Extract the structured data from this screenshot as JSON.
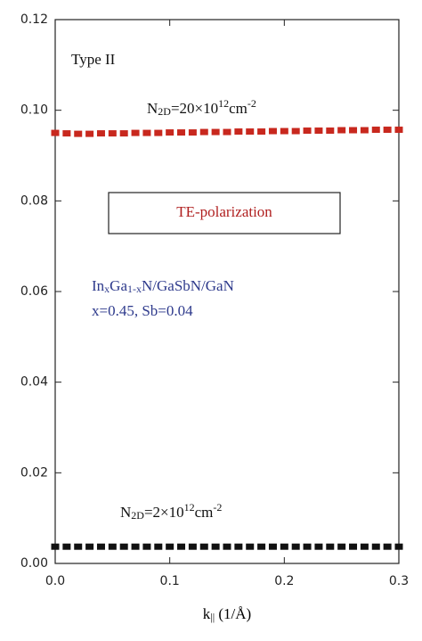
{
  "chart_data": {
    "type": "line",
    "marker": "square",
    "x_label": [
      {
        "text": "k"
      },
      {
        "text": "||",
        "style": "sub"
      },
      {
        "text": " (1/Å)"
      }
    ],
    "x": [
      0,
      0.01,
      0.02,
      0.03,
      0.04,
      0.05,
      0.06,
      0.07,
      0.08,
      0.09,
      0.1,
      0.11,
      0.12,
      0.13,
      0.14,
      0.15,
      0.16,
      0.17,
      0.18,
      0.19,
      0.2,
      0.21,
      0.22,
      0.23,
      0.24,
      0.25,
      0.26,
      0.27,
      0.28,
      0.29,
      0.3
    ],
    "series": [
      {
        "name": [
          {
            "text": "N"
          },
          {
            "text": "2D",
            "style": "sub"
          },
          {
            "text": "=20×10"
          },
          {
            "text": "12",
            "style": "sup"
          },
          {
            "text": "cm"
          },
          {
            "text": "-2",
            "style": "sup"
          }
        ],
        "color": "#c8281e",
        "values": [
          0.095,
          0.0949,
          0.0948,
          0.0948,
          0.0949,
          0.0949,
          0.0949,
          0.095,
          0.095,
          0.095,
          0.0951,
          0.0951,
          0.0951,
          0.0952,
          0.0952,
          0.0952,
          0.0953,
          0.0953,
          0.0953,
          0.0954,
          0.0954,
          0.0954,
          0.0955,
          0.0955,
          0.0955,
          0.0956,
          0.0956,
          0.0956,
          0.0957,
          0.0957,
          0.0957
        ]
      },
      {
        "name": [
          {
            "text": "N"
          },
          {
            "text": "2D",
            "style": "sub"
          },
          {
            "text": "=2×10"
          },
          {
            "text": "12",
            "style": "sup"
          },
          {
            "text": "cm"
          },
          {
            "text": "-2",
            "style": "sup"
          }
        ],
        "color": "#111111",
        "values": [
          0.0037,
          0.0037,
          0.0037,
          0.0037,
          0.0037,
          0.0037,
          0.0037,
          0.0037,
          0.0037,
          0.0037,
          0.0037,
          0.0037,
          0.0037,
          0.0037,
          0.0037,
          0.0037,
          0.0037,
          0.0037,
          0.0037,
          0.0037,
          0.0037,
          0.0037,
          0.0037,
          0.0037,
          0.0037,
          0.0037,
          0.0037,
          0.0037,
          0.0037,
          0.0037,
          0.0037
        ]
      }
    ],
    "annotations": [
      {
        "parts": [
          {
            "text": "Type II"
          }
        ],
        "color": "#111111"
      },
      {
        "parts": [
          {
            "text": "TE-polarization"
          }
        ],
        "color": "#b02020",
        "box": true
      },
      {
        "parts": [
          {
            "text": "In"
          },
          {
            "text": "x",
            "style": "sub"
          },
          {
            "text": "Ga"
          },
          {
            "text": "1-x",
            "style": "sub"
          },
          {
            "text": "N/GaSbN/GaN"
          }
        ],
        "color": "#2e3a8c"
      },
      {
        "parts": [
          {
            "text": "x=0.45, Sb=0.04"
          }
        ],
        "color": "#2e3a8c"
      }
    ],
    "xlim": [
      0,
      0.3
    ],
    "xticks": [
      {
        "value": 0,
        "label": "0.0"
      },
      0.1,
      0.2,
      0.3
    ],
    "ylim": [
      0,
      0.12
    ],
    "yticks": [
      {
        "value": 0,
        "label": "0.00"
      },
      0.02,
      0.04,
      0.06,
      0.08,
      {
        "value": 0.1,
        "label": "0.10"
      },
      0.12
    ]
  }
}
